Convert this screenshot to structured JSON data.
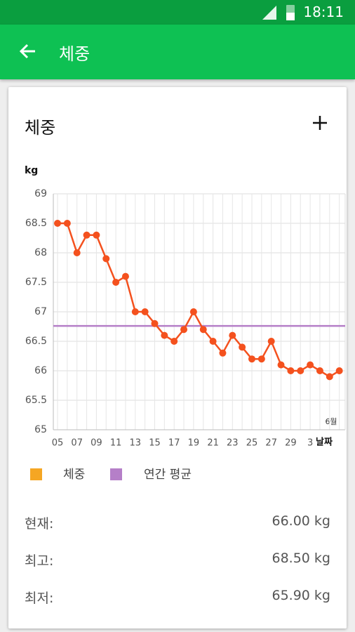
{
  "status_bar": {
    "time": "18:11"
  },
  "app_bar": {
    "title": "체중"
  },
  "card": {
    "title": "체중"
  },
  "chart_data": {
    "type": "line",
    "y_label": "kg",
    "x_label": "날짜",
    "annotation": "6월",
    "categories": [
      "05",
      null,
      "07",
      null,
      "09",
      null,
      "11",
      null,
      "13",
      null,
      "15",
      null,
      "17",
      null,
      "19",
      null,
      "21",
      null,
      "23",
      null,
      "25",
      null,
      "27",
      null,
      "29",
      null,
      "3",
      null,
      null,
      null
    ],
    "series": [
      {
        "name": "체중",
        "color": "#f4511e",
        "legend_color": "#f5a623",
        "values": [
          68.5,
          68.5,
          68,
          68.3,
          68.3,
          67.9,
          67.5,
          67.6,
          67,
          67,
          66.8,
          66.6,
          66.5,
          66.7,
          67,
          66.7,
          66.5,
          66.3,
          66.6,
          66.4,
          66.2,
          66.2,
          66.5,
          66.1,
          66.0,
          66.0,
          66.1,
          66.0,
          65.9,
          66.0
        ]
      }
    ],
    "average": {
      "name": "연간 평균",
      "color": "#b57fc8",
      "value": 66.76
    },
    "ylim": [
      65,
      69
    ],
    "yticks": [
      65,
      65.5,
      66,
      66.5,
      67,
      67.5,
      68,
      68.5,
      69
    ],
    "grid": true
  },
  "stats": [
    {
      "label": "현재:",
      "value": "66.00 kg"
    },
    {
      "label": "최고:",
      "value": "68.50 kg"
    },
    {
      "label": "최저:",
      "value": "65.90 kg"
    }
  ]
}
